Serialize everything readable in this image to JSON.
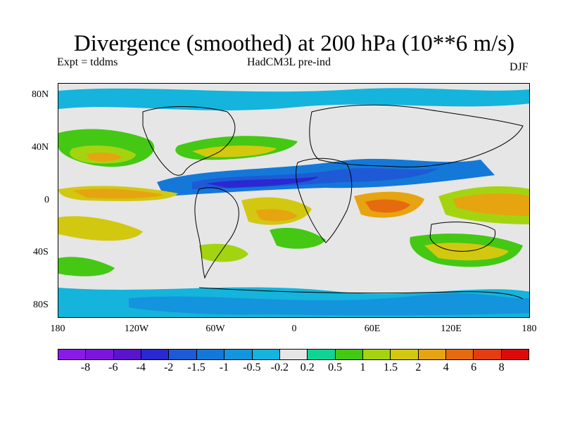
{
  "header": {
    "title": "Divergence (smoothed) at 200 hPa (10**6 m/s)",
    "expt": "Expt = tddms",
    "model": "HadCM3L pre-ind",
    "season": "DJF"
  },
  "map": {
    "lat_ticks": [
      "80N",
      "40N",
      "0",
      "40S",
      "80S"
    ],
    "lon_ticks": [
      "180",
      "120W",
      "60W",
      "0",
      "60E",
      "120E",
      "180"
    ]
  },
  "colorbar": {
    "labels": [
      "-8",
      "-6",
      "-4",
      "-2",
      "-1.5",
      "-1",
      "-0.5",
      "-0.2",
      "0.2",
      "0.5",
      "1",
      "1.5",
      "2",
      "4",
      "6",
      "8"
    ],
    "colors": [
      "#8a1ae6",
      "#7a16dc",
      "#5a14cc",
      "#2a28d2",
      "#1e5ad6",
      "#1478d8",
      "#1494dc",
      "#14b4dc",
      "#e6e6e6",
      "#10d494",
      "#44c814",
      "#a4d410",
      "#d2c810",
      "#e6a410",
      "#e66a10",
      "#e63c14",
      "#dc0a0a"
    ]
  }
}
